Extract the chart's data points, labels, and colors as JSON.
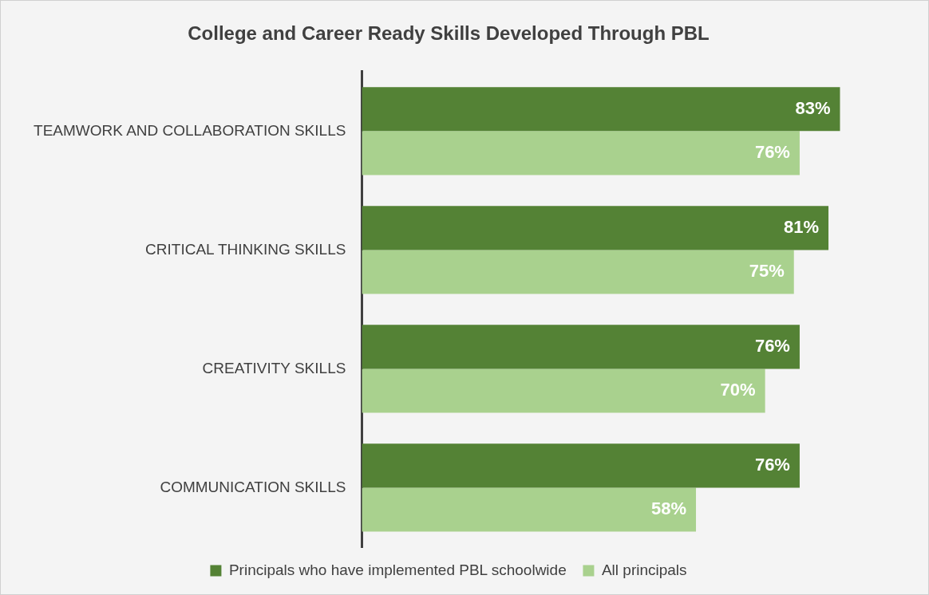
{
  "chart_data": {
    "type": "bar",
    "orientation": "horizontal",
    "title": "College and Career Ready Skills Developed Through PBL",
    "categories": [
      "TEAMWORK AND COLLABORATION SKILLS",
      "CRITICAL THINKING SKILLS",
      "CREATIVITY SKILLS",
      "COMMUNICATION SKILLS"
    ],
    "series": [
      {
        "name": "Principals who have implemented PBL schoolwide",
        "color": "#548235",
        "values": [
          83,
          81,
          76,
          76
        ],
        "value_labels": [
          "83%",
          "81%",
          "76%",
          "76%"
        ]
      },
      {
        "name": "All principals",
        "color": "#a9d18e",
        "values": [
          76,
          75,
          70,
          58
        ],
        "value_labels": [
          "76%",
          "75%",
          "70%",
          "58%"
        ]
      }
    ],
    "tick_labels": "y",
    "grid": false,
    "legend": "bottom"
  }
}
